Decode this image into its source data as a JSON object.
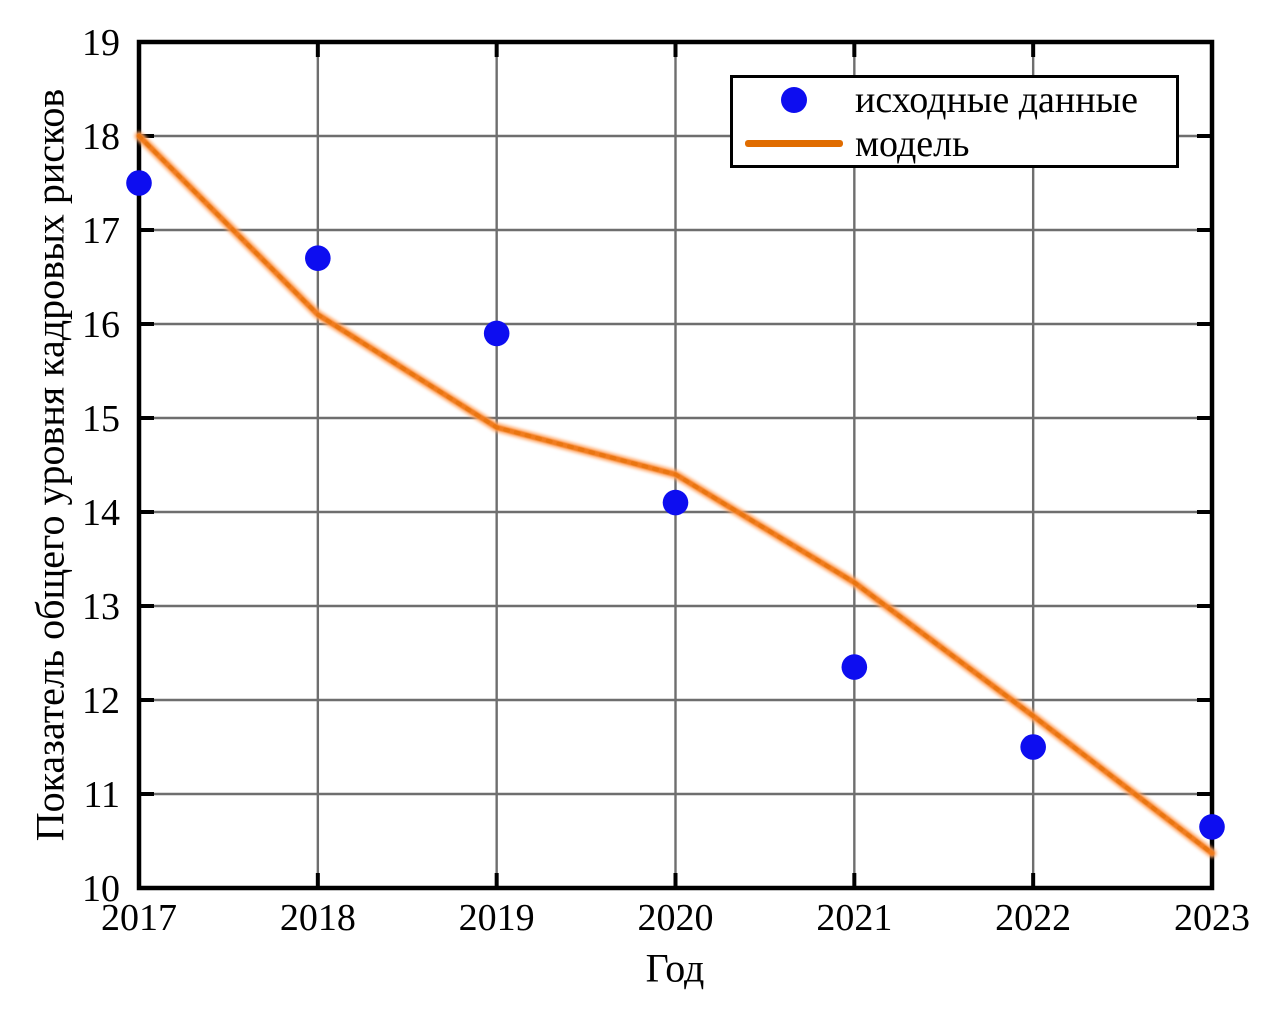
{
  "chart_data": {
    "type": "scatter",
    "title": "",
    "xlabel": "Год",
    "ylabel": "Показатель общего уровня кадровых рисков",
    "xlim": [
      2017,
      2023
    ],
    "ylim": [
      10,
      19
    ],
    "x_ticks": [
      2017,
      2018,
      2019,
      2020,
      2021,
      2022,
      2023
    ],
    "y_ticks": [
      10,
      11,
      12,
      13,
      14,
      15,
      16,
      17,
      18,
      19
    ],
    "grid": true,
    "grid_color": "#6e6e6e",
    "frame_color": "#000000",
    "legend_position": "upper-right-inside",
    "series": [
      {
        "name": "исходные данные",
        "type": "scatter",
        "color": "#0d0df0",
        "x": [
          2017,
          2018,
          2019,
          2020,
          2021,
          2022,
          2023
        ],
        "y": [
          17.5,
          16.7,
          15.9,
          14.1,
          12.35,
          11.5,
          10.65
        ]
      },
      {
        "name": "модель",
        "type": "line",
        "color": "#e06c00",
        "halo_color": "#ffa361",
        "core_color": "#f07818",
        "x": [
          2017,
          2018,
          2019,
          2020,
          2021,
          2022,
          2023
        ],
        "y": [
          18.0,
          16.1,
          14.9,
          14.4,
          13.25,
          11.83,
          10.37
        ]
      }
    ]
  },
  "legend": {
    "items": [
      {
        "label": "исходные данные"
      },
      {
        "label": "модель"
      }
    ]
  }
}
